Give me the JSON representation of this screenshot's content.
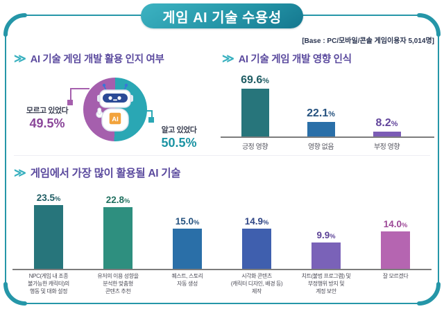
{
  "title": "게임 AI 기술 수용성",
  "base_note": "[Base : PC/모바일/콘솔 게임이용자 5,014명]",
  "unit": "%",
  "icons": {
    "section_chevron": "≫"
  },
  "mascot": {
    "chest_label": "AI"
  },
  "colors": {
    "frame_teal": "#2596a8",
    "header_purple": "#5b4a9e",
    "chevron_teal": "#38b0bf",
    "axis_gray": "#7c7c7c"
  },
  "chart_data": [
    {
      "type": "pie",
      "title": "AI 기술 게임 개발 활용 인지 여부",
      "slices": [
        {
          "label": "알고 있었다",
          "value": "50.5",
          "color": "#2aa7b4"
        },
        {
          "label": "모르고 있었다",
          "value": "49.5",
          "color": "#a55fad"
        }
      ]
    },
    {
      "type": "bar",
      "title": "AI 기술 게임 개발 영향 인식",
      "categories": [
        "긍정 영향",
        "영향 없음",
        "부정 영향"
      ],
      "values": [
        "69.6",
        "22.1",
        "8.2"
      ],
      "colors": [
        "#27757b",
        "#2a6fa8",
        "#7b5cb5"
      ],
      "label_colors": [
        "#1e5c63",
        "#25527f",
        "#61449b"
      ],
      "ylim": [
        0,
        100
      ],
      "grid": false,
      "unit": "%"
    },
    {
      "type": "bar",
      "title": "게임에서 가장 많이 활용될 AI 기술",
      "categories": [
        "NPC(게임 내 조종\n불가능한 캐릭터)의\n행동 및 대화 설정",
        "유저의 이용 성향을\n분석한 맞춤형\n콘텐츠 추천",
        "퀘스트, 스토리\n자동 생성",
        "시각화 콘텐츠\n(캐릭터 디자인, 배경 등)\n제작",
        "치트(불법 프로그램) 및\n부정행위 방지 및\n계정 보안",
        "잘 모르겠다"
      ],
      "values": [
        "23.5",
        "22.8",
        "15.0",
        "14.9",
        "9.9",
        "14.0"
      ],
      "colors": [
        "#27757b",
        "#2e8f7f",
        "#2a6fa8",
        "#3f5fae",
        "#7a62b8",
        "#b565b1"
      ],
      "label_colors": [
        "#1e5c63",
        "#20705f",
        "#25527f",
        "#2f4585",
        "#5d4397",
        "#9c4796"
      ],
      "ylim": [
        0,
        25
      ],
      "grid": false,
      "unit": "%"
    }
  ]
}
